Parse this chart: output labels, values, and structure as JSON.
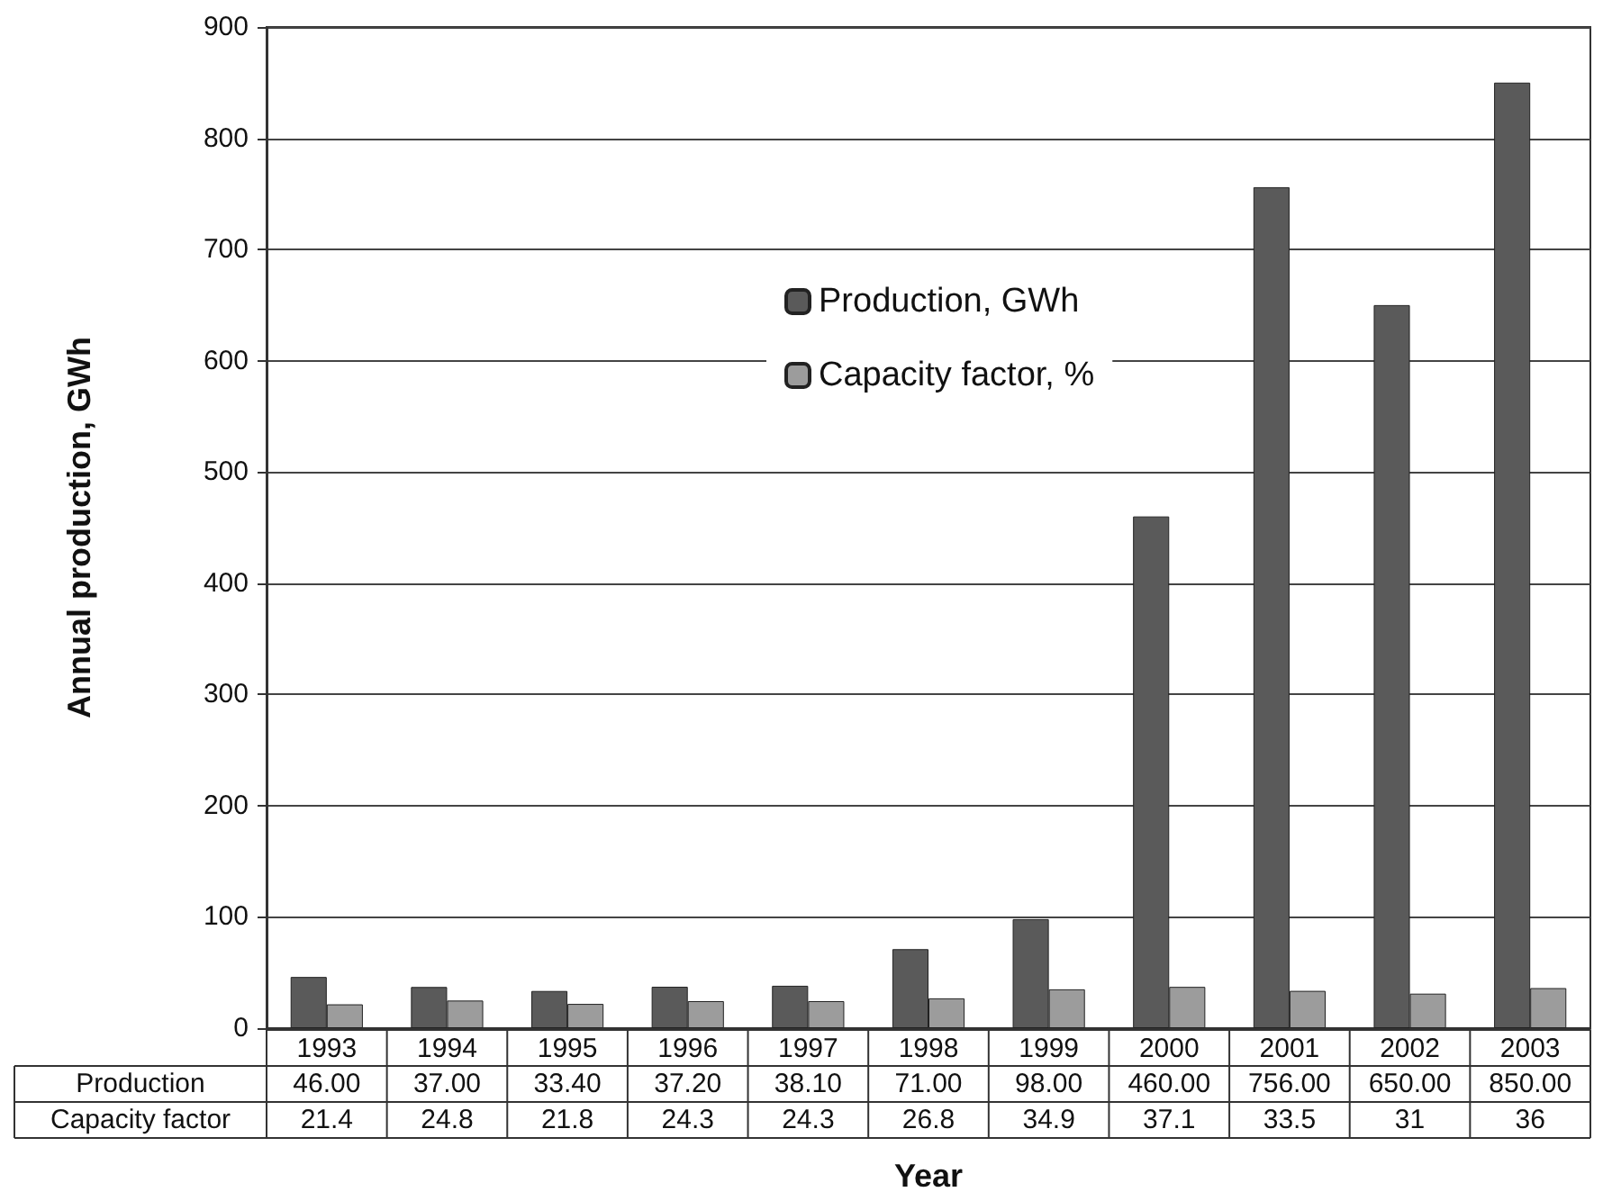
{
  "chart_data": {
    "type": "bar",
    "xlabel": "Year",
    "ylabel": "Annual production, GWh",
    "categories": [
      "1993",
      "1994",
      "1995",
      "1996",
      "1997",
      "1998",
      "1999",
      "2000",
      "2001",
      "2002",
      "2003"
    ],
    "series": [
      {
        "name": "Production, GWh",
        "color": "#5a5a5a",
        "values": [
          46,
          37,
          33.4,
          37.2,
          38.1,
          71,
          98,
          460,
          756,
          650,
          850
        ],
        "value_labels": [
          "46.00",
          "37.00",
          "33.40",
          "37.20",
          "38.10",
          "71.00",
          "98.00",
          "460.00",
          "756.00",
          "650.00",
          "850.00"
        ]
      },
      {
        "name": "Capacity factor, %",
        "color": "#9c9c9c",
        "values": [
          21.4,
          24.8,
          21.8,
          24.3,
          24.3,
          26.8,
          34.9,
          37.1,
          33.5,
          31,
          36
        ],
        "value_labels": [
          "21.4",
          "24.8",
          "21.8",
          "24.3",
          "24.3",
          "26.8",
          "34.9",
          "37.1",
          "33.5",
          "31",
          "36"
        ]
      }
    ],
    "annotations": [
      "Production",
      "Capacity factor"
    ],
    "ylim": [
      0,
      900
    ],
    "yticks": [
      0,
      100,
      200,
      300,
      400,
      500,
      600,
      700,
      800,
      900
    ],
    "grid": "y",
    "legend": "top"
  }
}
